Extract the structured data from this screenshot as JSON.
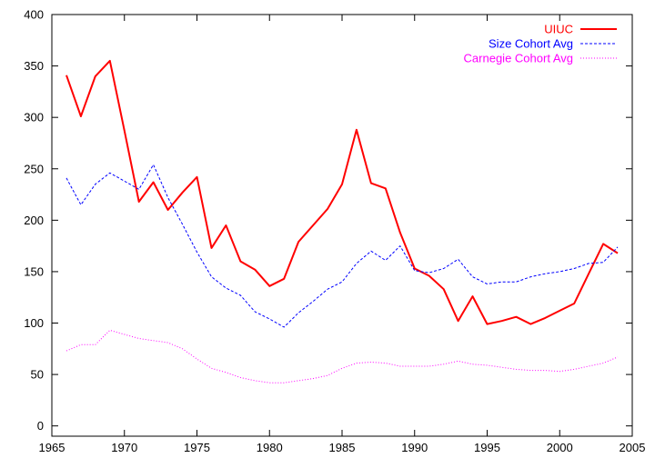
{
  "chart_data": {
    "type": "line",
    "title": "",
    "xlabel": "",
    "ylabel": "",
    "xlim": [
      1965,
      2005
    ],
    "ylim": [
      -10,
      400
    ],
    "grid": false,
    "legend_position": "top-right",
    "x_ticks": [
      1965,
      1970,
      1975,
      1980,
      1985,
      1990,
      1995,
      2000,
      2005
    ],
    "y_ticks": [
      0,
      50,
      100,
      150,
      200,
      250,
      300,
      350,
      400
    ],
    "series": [
      {
        "name": "UIUC",
        "color": "#ff0000",
        "style": "solid",
        "x": [
          1966,
          1967,
          1968,
          1969,
          1970,
          1971,
          1972,
          1973,
          1974,
          1975,
          1976,
          1977,
          1978,
          1979,
          1980,
          1981,
          1982,
          1983,
          1984,
          1985,
          1986,
          1987,
          1988,
          1989,
          1990,
          1991,
          1992,
          1993,
          1994,
          1995,
          1996,
          1997,
          1998,
          1999,
          2000,
          2001,
          2002,
          2003,
          2004
        ],
        "values": [
          341,
          301,
          340,
          355,
          287,
          218,
          237,
          210,
          227,
          242,
          173,
          195,
          160,
          152,
          136,
          143,
          179,
          195,
          211,
          235,
          288,
          236,
          231,
          188,
          153,
          146,
          133,
          102,
          126,
          99,
          102,
          106,
          99,
          105,
          112,
          119,
          148,
          177,
          168
        ]
      },
      {
        "name": "Size Cohort Avg",
        "color": "#0000ff",
        "style": "dashed",
        "x": [
          1966,
          1967,
          1968,
          1969,
          1970,
          1971,
          1972,
          1973,
          1974,
          1975,
          1976,
          1977,
          1978,
          1979,
          1980,
          1981,
          1982,
          1983,
          1984,
          1985,
          1986,
          1987,
          1988,
          1989,
          1990,
          1991,
          1992,
          1993,
          1994,
          1995,
          1996,
          1997,
          1998,
          1999,
          2000,
          2001,
          2002,
          2003,
          2004
        ],
        "values": [
          241,
          215,
          235,
          246,
          238,
          230,
          254,
          222,
          196,
          169,
          145,
          134,
          127,
          111,
          104,
          96,
          110,
          121,
          133,
          140,
          158,
          170,
          161,
          175,
          151,
          149,
          153,
          162,
          145,
          138,
          140,
          140,
          145,
          148,
          150,
          153,
          158,
          159,
          174
        ]
      },
      {
        "name": "Carnegie Cohort Avg",
        "color": "#ff00ff",
        "style": "dotted",
        "x": [
          1966,
          1967,
          1968,
          1969,
          1970,
          1971,
          1972,
          1973,
          1974,
          1975,
          1976,
          1977,
          1978,
          1979,
          1980,
          1981,
          1982,
          1983,
          1984,
          1985,
          1986,
          1987,
          1988,
          1989,
          1990,
          1991,
          1992,
          1993,
          1994,
          1995,
          1996,
          1997,
          1998,
          1999,
          2000,
          2001,
          2002,
          2003,
          2004
        ],
        "values": [
          73,
          79,
          79,
          93,
          89,
          85,
          83,
          81,
          75,
          65,
          56,
          52,
          47,
          44,
          42,
          42,
          44,
          46,
          49,
          56,
          61,
          62,
          61,
          58,
          58,
          58,
          60,
          63,
          60,
          59,
          57,
          55,
          54,
          54,
          53,
          55,
          58,
          61,
          67
        ]
      }
    ]
  }
}
